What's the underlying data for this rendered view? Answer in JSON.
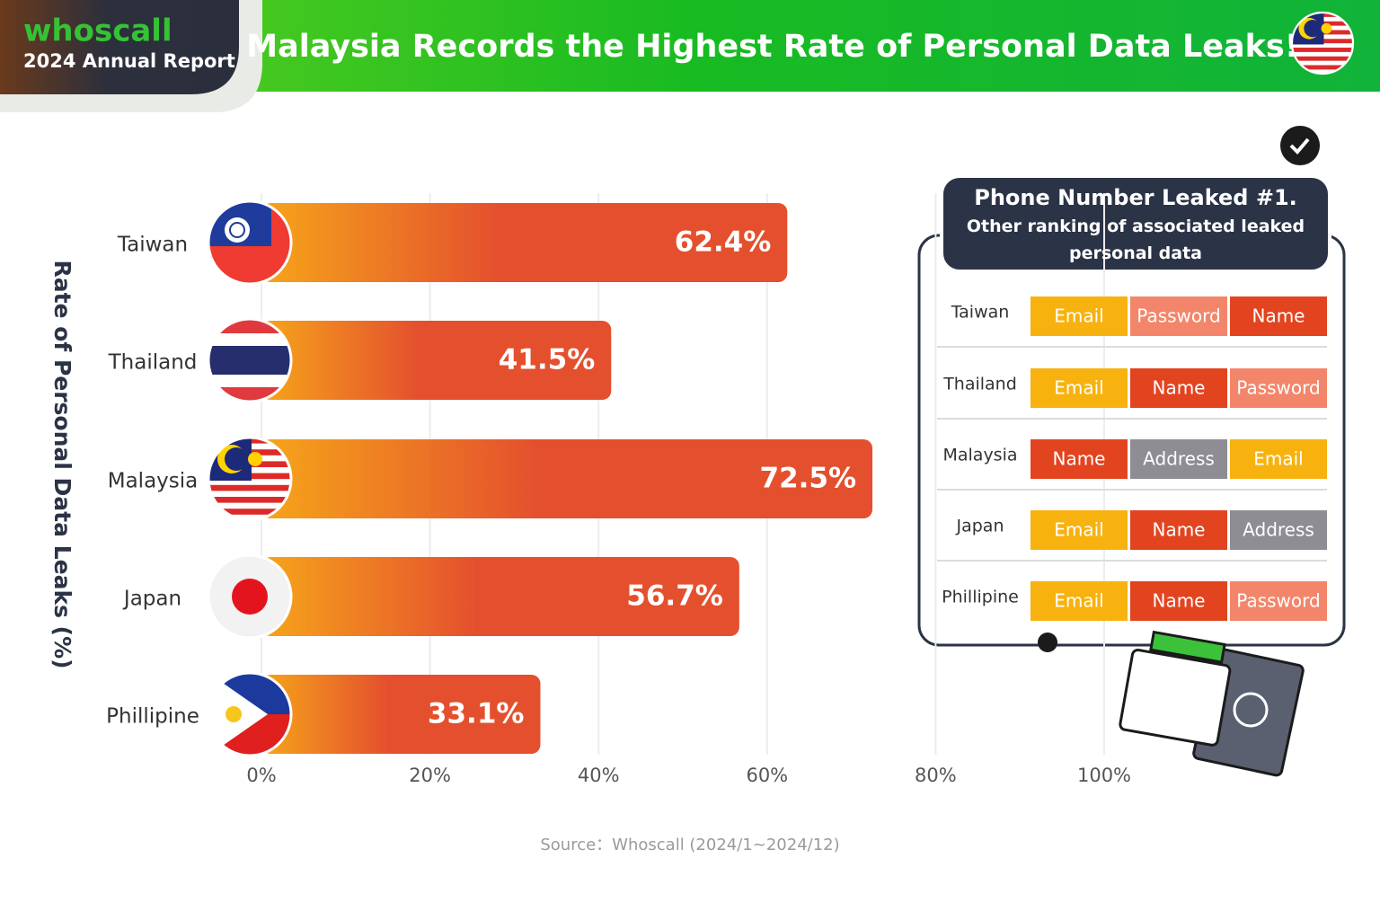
{
  "brand": "whoscall",
  "report": "2024 Annual Report",
  "chart_data": {
    "type": "hbar",
    "title": "Malaysia Records the Highest Rate of Personal Data Leaks!",
    "y_label": "Rate of Personal Data Leaks (%)",
    "categories": [
      "Taiwan",
      "Thailand",
      "Malaysia",
      "Japan",
      "Phillipine"
    ],
    "values": [
      62.4,
      41.5,
      72.5,
      56.7,
      33.1
    ],
    "value_labels": [
      "62.4%",
      "41.5%",
      "72.5%",
      "56.7%",
      "33.1%"
    ],
    "xlim": [
      0,
      100
    ],
    "xticks": [
      {
        "value": 0,
        "label": "0%"
      },
      {
        "value": 20,
        "label": "20%"
      },
      {
        "value": 40,
        "label": "40%"
      },
      {
        "value": 60,
        "label": "60%"
      },
      {
        "value": 80,
        "label": "80%"
      },
      {
        "value": 100,
        "label": "100%"
      }
    ],
    "grid": true,
    "color_start": "#f6a51a",
    "color_end": "#e4502e",
    "source": "Source：Whoscall (2024/1~2024/12)"
  },
  "side_panel": {
    "title": "Phone Number Leaked #1.",
    "subtitle": "Other ranking of associated leaked personal data",
    "rows": [
      {
        "country": "Taiwan",
        "items": [
          "Email",
          "Password",
          "Name"
        ]
      },
      {
        "country": "Thailand",
        "items": [
          "Email",
          "Name",
          "Password"
        ]
      },
      {
        "country": "Malaysia",
        "items": [
          "Name",
          "Address",
          "Email"
        ]
      },
      {
        "country": "Japan",
        "items": [
          "Email",
          "Name",
          "Address"
        ]
      },
      {
        "country": "Phillipine",
        "items": [
          "Email",
          "Name",
          "Password"
        ]
      }
    ],
    "item_colors": {
      "Email": "#f7b20f",
      "Password": "#f3866a",
      "Name": "#e2441f",
      "Address": "#8d8d93"
    }
  }
}
